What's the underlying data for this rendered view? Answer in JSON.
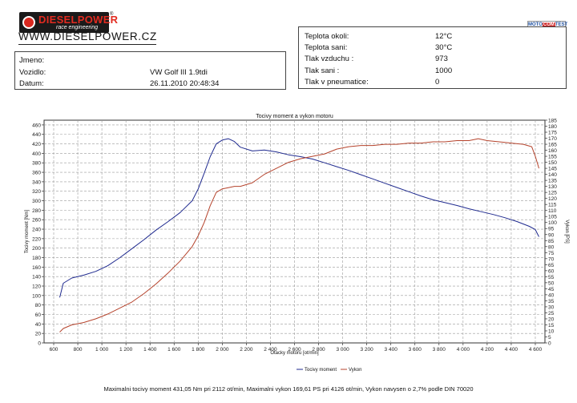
{
  "header": {
    "logo_name": "DIESELPOWER",
    "logo_sub": "race engineering",
    "logo_reg": "®",
    "website": "WWW.DIESELPOWER.CZ",
    "badge": {
      "a": "MOTO",
      "b": "COM",
      "c": "TEST"
    }
  },
  "vehicle": {
    "jmeno_label": "Jmeno:",
    "jmeno_value": "",
    "vozidlo_label": "Vozidlo:",
    "vozidlo_value": "VW Golf III 1.9tdi",
    "datum_label": "Datum:",
    "datum_value": "26.11.2010 20:48:34"
  },
  "conditions": [
    {
      "label": "Teplota okoli:",
      "value": "12°C"
    },
    {
      "label": "Teplota sani:",
      "value": "30°C"
    },
    {
      "label": "Tlak vzduchu :",
      "value": "973"
    },
    {
      "label": "Tlak sani :",
      "value": "1000"
    },
    {
      "label": "Tlak v pneumatice:",
      "value": "0"
    }
  ],
  "chart_data": {
    "type": "line",
    "title": "Tocivy moment a vykon motoru",
    "xlabel": "Otacky motoru [ot/min]",
    "ylabel_left": "Tocivy moment [Nm]",
    "ylabel_right": "Vykon [PS]",
    "xlim": [
      520,
      4680
    ],
    "ylim_left": [
      0,
      470
    ],
    "ylim_right": [
      0,
      185
    ],
    "x_ticks": [
      600,
      800,
      1000,
      1200,
      1400,
      1600,
      1800,
      2000,
      2200,
      2400,
      2600,
      2800,
      3000,
      3200,
      3400,
      3600,
      3800,
      4000,
      4200,
      4400,
      4600
    ],
    "x_tick_labels": [
      "600",
      "800",
      "1 000",
      "1 200",
      "1 400",
      "1 600",
      "1 800",
      "2 000",
      "2 200",
      "2 400",
      "2 600",
      "2 800",
      "3 000",
      "3 200",
      "3 400",
      "3 600",
      "3 800",
      "4 000",
      "4 200",
      "4 400",
      "4 600"
    ],
    "y_ticks_left": [
      0,
      20,
      40,
      60,
      80,
      100,
      120,
      140,
      160,
      180,
      200,
      220,
      240,
      260,
      280,
      300,
      320,
      340,
      360,
      380,
      400,
      420,
      440,
      460
    ],
    "y_ticks_right": [
      0,
      5,
      10,
      15,
      20,
      25,
      30,
      35,
      40,
      45,
      50,
      55,
      60,
      65,
      70,
      75,
      80,
      85,
      90,
      95,
      100,
      105,
      110,
      115,
      120,
      125,
      130,
      135,
      140,
      145,
      150,
      155,
      160,
      165,
      170,
      175,
      180,
      185
    ],
    "grid": true,
    "legend_position": "bottom",
    "series": [
      {
        "name": "Tocivy moment",
        "axis": "left",
        "color": "#1f2a8f",
        "x": [
          650,
          680,
          750,
          850,
          950,
          1050,
          1150,
          1250,
          1350,
          1450,
          1550,
          1650,
          1750,
          1800,
          1850,
          1900,
          1950,
          2000,
          2050,
          2100,
          2150,
          2250,
          2350,
          2450,
          2550,
          2650,
          2750,
          2850,
          2950,
          3050,
          3150,
          3250,
          3350,
          3450,
          3550,
          3650,
          3750,
          3850,
          3950,
          4050,
          4150,
          4250,
          4350,
          4450,
          4550,
          4600,
          4630
        ],
        "y": [
          96,
          126,
          137,
          143,
          151,
          163,
          180,
          199,
          218,
          238,
          256,
          275,
          300,
          325,
          358,
          393,
          420,
          428,
          431,
          425,
          413,
          405,
          407,
          403,
          397,
          393,
          388,
          380,
          372,
          364,
          355,
          346,
          337,
          328,
          319,
          310,
          302,
          296,
          290,
          283,
          277,
          271,
          264,
          256,
          246,
          239,
          224
        ]
      },
      {
        "name": "Vykon",
        "axis": "right",
        "color": "#b5432c",
        "x": [
          650,
          680,
          750,
          850,
          950,
          1050,
          1150,
          1250,
          1350,
          1450,
          1550,
          1650,
          1750,
          1800,
          1850,
          1900,
          1950,
          2000,
          2050,
          2100,
          2150,
          2250,
          2350,
          2450,
          2550,
          2650,
          2750,
          2850,
          2950,
          3050,
          3150,
          3250,
          3350,
          3450,
          3550,
          3650,
          3750,
          3850,
          3950,
          4050,
          4126,
          4200,
          4300,
          4400,
          4500,
          4570,
          4600,
          4630
        ],
        "y": [
          9,
          12,
          15,
          17,
          20,
          24,
          29,
          34,
          41,
          49,
          58,
          68,
          80,
          89,
          100,
          114,
          125,
          128,
          129,
          130,
          130,
          133,
          140,
          145,
          150,
          153,
          155,
          157,
          161,
          163,
          164,
          164,
          165,
          165,
          166,
          166,
          167,
          167,
          168,
          168,
          169.6,
          168,
          167,
          166,
          165,
          163,
          155,
          145
        ]
      }
    ]
  },
  "footer_text": "Maximalni tocivy moment 431,05 Nm pri 2112 ot/min,  Maximalni vykon 169,61 PS pri 4126 ot/min,  Vykon navysen o 2,7% podle DIN 70020"
}
